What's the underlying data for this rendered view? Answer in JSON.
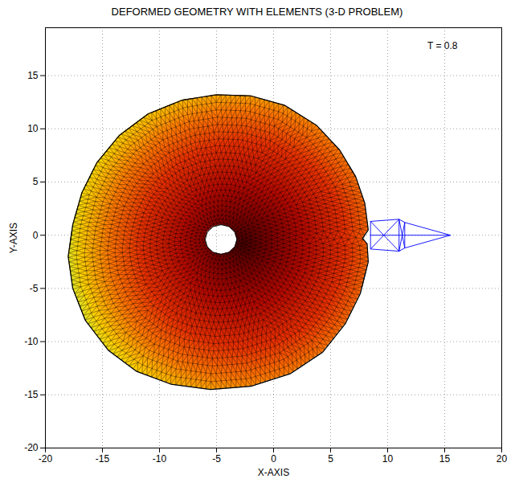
{
  "chart_data": {
    "type": "mesh",
    "title": "DEFORMED GEOMETRY WITH ELEMENTS (3-D PROBLEM)",
    "annotation": "T = 0.8",
    "x_label": "X-AXIS",
    "y_label": "Y-AXIS",
    "xlim": [
      -20,
      20
    ],
    "ylim": [
      -20,
      19.5
    ],
    "xticks": [
      -20,
      -15,
      -10,
      -5,
      0,
      5,
      10,
      15,
      20
    ],
    "yticks": [
      -20,
      -15,
      -10,
      -5,
      0,
      5,
      10,
      15
    ],
    "grid": true,
    "outer_boundary": [
      [
        8.3,
        0.5
      ],
      [
        8.0,
        3
      ],
      [
        7.2,
        5.5
      ],
      [
        5.8,
        8
      ],
      [
        3.8,
        10.3
      ],
      [
        1,
        12.2
      ],
      [
        -2,
        13.1
      ],
      [
        -5,
        13.2
      ],
      [
        -8,
        12.7
      ],
      [
        -11,
        11.4
      ],
      [
        -13.5,
        9.4
      ],
      [
        -15.5,
        6.8
      ],
      [
        -16.8,
        4
      ],
      [
        -17.6,
        1
      ],
      [
        -18,
        -2
      ],
      [
        -17.6,
        -5
      ],
      [
        -16.5,
        -8
      ],
      [
        -14.5,
        -10.8
      ],
      [
        -12,
        -12.8
      ],
      [
        -9,
        -14
      ],
      [
        -5.5,
        -14.5
      ],
      [
        -2,
        -14.2
      ],
      [
        1.5,
        -13
      ],
      [
        4.3,
        -11
      ],
      [
        6.3,
        -8.3
      ],
      [
        7.6,
        -5.5
      ],
      [
        8.3,
        -2.5
      ],
      [
        8.2,
        -0.8
      ],
      [
        7.8,
        -0.3
      ]
    ],
    "hole_boundary": [
      [
        -3.2,
        -0.4
      ],
      [
        -3.39,
        0.3
      ],
      [
        -3.9,
        0.81
      ],
      [
        -4.6,
        1.0
      ],
      [
        -5.3,
        0.81
      ],
      [
        -5.81,
        0.3
      ],
      [
        -6.0,
        -0.4
      ],
      [
        -5.81,
        -1.1
      ],
      [
        -5.3,
        -1.61
      ],
      [
        -4.6,
        -1.8
      ],
      [
        -3.9,
        -1.61
      ],
      [
        -3.39,
        -1.1
      ]
    ],
    "wireframe": {
      "color": "#0000ff",
      "segments": [
        [
          8.5,
          1.3,
          11.0,
          1.5
        ],
        [
          11.0,
          1.5,
          11.5,
          1.2
        ],
        [
          11.5,
          1.2,
          15.5,
          0
        ],
        [
          8.5,
          -1.3,
          11.0,
          -1.5
        ],
        [
          11.0,
          -1.5,
          11.5,
          -1.2
        ],
        [
          11.5,
          -1.2,
          15.5,
          0
        ],
        [
          8.5,
          1.3,
          8.5,
          -1.3
        ],
        [
          11.0,
          1.5,
          11.0,
          -1.5
        ],
        [
          11.5,
          1.2,
          11.5,
          -1.2
        ],
        [
          8.5,
          1.3,
          11.0,
          -1.5
        ],
        [
          8.5,
          -1.3,
          11.0,
          1.5
        ],
        [
          11.0,
          1.5,
          11.5,
          -1.2
        ],
        [
          11.0,
          -1.5,
          11.5,
          1.2
        ],
        [
          8.5,
          0,
          11.5,
          0
        ],
        [
          11.5,
          0,
          15.5,
          0
        ]
      ]
    }
  }
}
